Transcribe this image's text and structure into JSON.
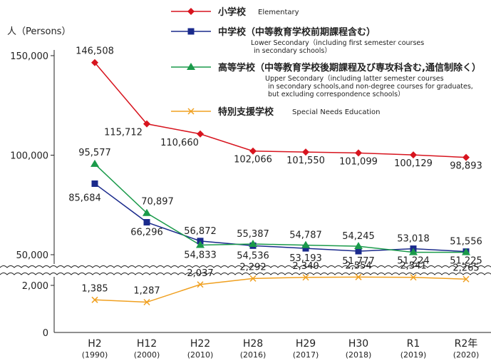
{
  "chart_data": {
    "type": "line",
    "ylabel": "人（Persons）",
    "yticks_upper": [
      "150,000",
      "100,000",
      "50,000"
    ],
    "yticks_lower": [
      "2,000",
      "0"
    ],
    "categories": [
      "H2",
      "H12",
      "H22",
      "H28",
      "H29",
      "H30",
      "R1",
      "R2年"
    ],
    "category_years": [
      "(1990)",
      "(2000)",
      "(2010)",
      "(2016)",
      "(2017)",
      "(2018)",
      "(2019)",
      "(2020)"
    ],
    "axis_break": true,
    "upper_ylim": [
      50000,
      150000
    ],
    "lower_ylim": [
      0,
      2000
    ],
    "legend_position": "top-right",
    "series": [
      {
        "name": "小学校",
        "en": [
          "Elementary"
        ],
        "color": "#d7141e",
        "marker": "diamond",
        "values": [
          146508,
          115712,
          110660,
          102066,
          101550,
          101099,
          100129,
          98893
        ],
        "labels": [
          "146,508",
          "115,712",
          "110,660",
          "102,066",
          "101,550",
          "101,099",
          "100,129",
          "98,893"
        ]
      },
      {
        "name": "中学校（中等教育学校前期課程含む）",
        "en": [
          "Lower Secondary（including  first semester courses",
          "in secondary schools）"
        ],
        "color": "#1a2a8c",
        "marker": "square",
        "values": [
          85684,
          66296,
          56872,
          54536,
          53193,
          51777,
          53018,
          51556
        ],
        "labels": [
          "85,684",
          "66,296",
          "56,872",
          "54,536",
          "53,193",
          "51,777",
          "53,018",
          "51,556"
        ]
      },
      {
        "name": "高等学校（中等教育学校後期課程及び専攻科含む,通信制除く）",
        "en": [
          "Upper Secondary（including latter semester courses",
          "in secondary schools,and non-degree courses for graduates,",
          "but excluding correspondence schools）"
        ],
        "color": "#1a9a4a",
        "marker": "triangle",
        "values": [
          95577,
          70897,
          54833,
          55387,
          54787,
          54245,
          51224,
          51225
        ],
        "labels": [
          "95,577",
          "70,897",
          "54,833",
          "55,387",
          "54,787",
          "54,245",
          "51,224",
          "51,225"
        ]
      },
      {
        "name": "特別支援学校",
        "en": [
          "Special Needs Education"
        ],
        "color": "#f0a020",
        "marker": "x",
        "values": [
          1385,
          1287,
          2037,
          2292,
          2340,
          2354,
          2341,
          2265
        ],
        "labels": [
          "1,385",
          "1,287",
          "2,037",
          "2,292",
          "2,340",
          "2,354",
          "2,341",
          "2,265"
        ]
      }
    ]
  }
}
